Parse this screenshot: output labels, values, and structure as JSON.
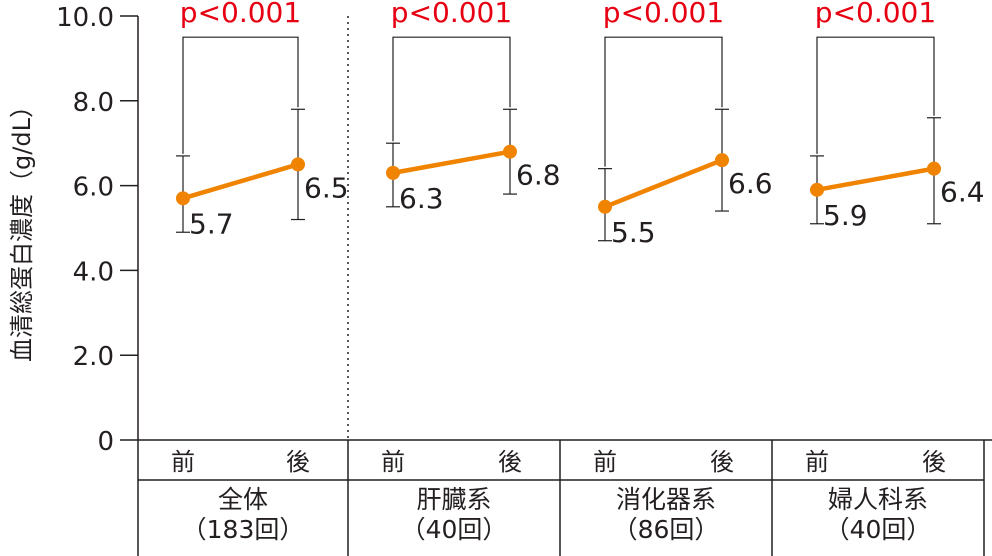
{
  "chart_data": {
    "type": "line",
    "ylabel": "血清総蛋白濃度（g/dL）",
    "ylim": [
      0,
      10
    ],
    "y_ticks": [
      "0",
      "2.0",
      "4.0",
      "6.0",
      "8.0",
      "10.0"
    ],
    "series_color": "#f08300",
    "pvalue_color": "#e60012",
    "categories": [
      "前",
      "後"
    ],
    "groups": [
      {
        "name": "全体",
        "count": "（183回）",
        "values": [
          5.7,
          6.5
        ],
        "value_labels": [
          "5.7",
          "6.5"
        ],
        "error_low": [
          4.9,
          5.2
        ],
        "error_high": [
          6.7,
          7.8
        ],
        "p_value": "p<0.001"
      },
      {
        "name": "肝臓系",
        "count": "（40回）",
        "values": [
          6.3,
          6.8
        ],
        "value_labels": [
          "6.3",
          "6.8"
        ],
        "error_low": [
          5.5,
          5.8
        ],
        "error_high": [
          7.0,
          7.8
        ],
        "p_value": "p<0.001"
      },
      {
        "name": "消化器系",
        "count": "（86回）",
        "values": [
          5.5,
          6.6
        ],
        "value_labels": [
          "5.5",
          "6.6"
        ],
        "error_low": [
          4.7,
          5.4
        ],
        "error_high": [
          6.4,
          7.8
        ],
        "p_value": "p<0.001"
      },
      {
        "name": "婦人科系",
        "count": "（40回）",
        "values": [
          5.9,
          6.4
        ],
        "value_labels": [
          "5.9",
          "6.4"
        ],
        "error_low": [
          5.1,
          5.1
        ],
        "error_high": [
          6.7,
          7.6
        ],
        "p_value": "p<0.001"
      }
    ]
  }
}
